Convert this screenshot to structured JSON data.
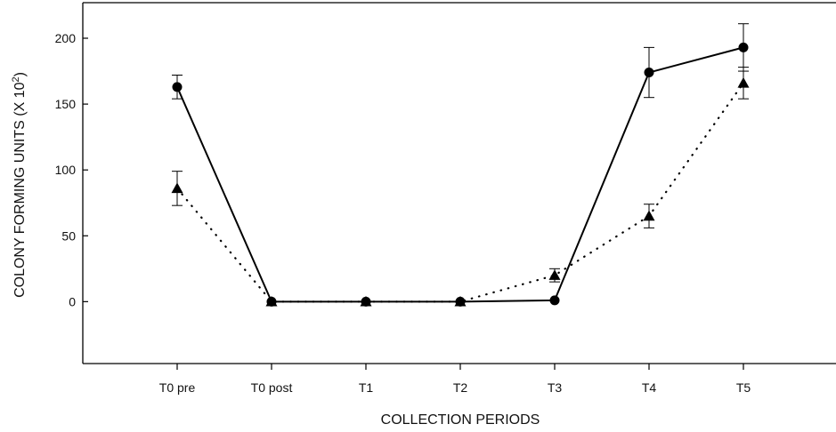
{
  "chart_data": {
    "type": "line",
    "title": "",
    "xlabel": "COLLECTION PERIODS",
    "ylabel": "COLONY FORMING UNITS (X 10",
    "ylabel_superscript": "2",
    "ylabel_suffix": ")",
    "categories": [
      "T0 pre",
      "T0 post",
      "T1",
      "T2",
      "T3",
      "T4",
      "T5"
    ],
    "ylim": [
      -47,
      227
    ],
    "yticks": [
      0,
      50,
      100,
      150,
      200
    ],
    "grid": false,
    "legend": "none",
    "series": [
      {
        "marker": "circle",
        "line_style": "solid",
        "values": [
          163,
          0,
          0,
          0,
          1,
          174,
          193
        ],
        "error": [
          9,
          0,
          0,
          0,
          0,
          19,
          18
        ]
      },
      {
        "marker": "triangle",
        "line_style": "dotted",
        "values": [
          86,
          0,
          0,
          0,
          20,
          65,
          166
        ],
        "error": [
          13,
          0,
          0,
          0,
          5,
          9,
          12
        ]
      }
    ]
  }
}
